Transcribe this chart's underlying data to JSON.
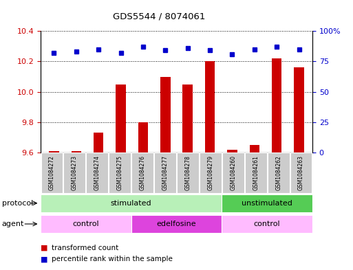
{
  "title": "GDS5544 / 8074061",
  "samples": [
    "GSM1084272",
    "GSM1084273",
    "GSM1084274",
    "GSM1084275",
    "GSM1084276",
    "GSM1084277",
    "GSM1084278",
    "GSM1084279",
    "GSM1084260",
    "GSM1084261",
    "GSM1084262",
    "GSM1084263"
  ],
  "bar_values": [
    9.61,
    9.61,
    9.73,
    10.05,
    9.8,
    10.1,
    10.05,
    10.2,
    9.62,
    9.65,
    10.22,
    10.16
  ],
  "dot_values": [
    82,
    83,
    85,
    82,
    87,
    84,
    86,
    84,
    81,
    85,
    87,
    85
  ],
  "ylim_left": [
    9.6,
    10.4
  ],
  "ylim_right": [
    0,
    100
  ],
  "yticks_left": [
    9.6,
    9.8,
    10.0,
    10.2,
    10.4
  ],
  "yticks_right": [
    0,
    25,
    50,
    75,
    100
  ],
  "ytick_labels_right": [
    "0",
    "25",
    "50",
    "75",
    "100%"
  ],
  "bar_color": "#cc0000",
  "dot_color": "#0000cc",
  "bar_bottom": 9.6,
  "protocol_groups": [
    {
      "label": "stimulated",
      "start": 0,
      "end": 8,
      "color": "#b8f0b8"
    },
    {
      "label": "unstimulated",
      "start": 8,
      "end": 12,
      "color": "#55cc55"
    }
  ],
  "agent_groups": [
    {
      "label": "control",
      "start": 0,
      "end": 4,
      "color": "#ffbbff"
    },
    {
      "label": "edelfosine",
      "start": 4,
      "end": 8,
      "color": "#dd44dd"
    },
    {
      "label": "control",
      "start": 8,
      "end": 12,
      "color": "#ffbbff"
    }
  ],
  "legend_bar_label": "transformed count",
  "legend_dot_label": "percentile rank within the sample",
  "protocol_label": "protocol",
  "agent_label": "agent",
  "tick_label_color_left": "#cc0000",
  "tick_label_color_right": "#0000cc",
  "gray_box_color": "#cccccc",
  "bg_color": "#ffffff"
}
